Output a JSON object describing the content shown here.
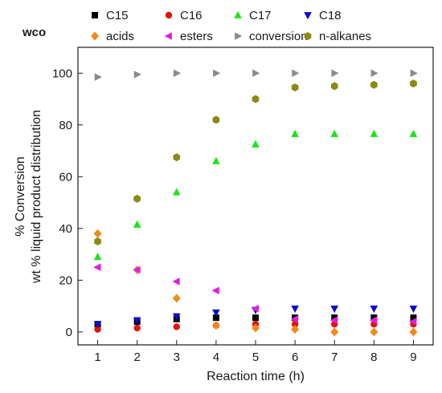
{
  "panel_label": "wco",
  "chart_data": {
    "type": "scatter",
    "xlabel": "Reaction time (h)",
    "ylabel_line1": "% Conversion",
    "ylabel_line2": "wt % liquid product distribution",
    "xlim": [
      0.5,
      9.5
    ],
    "ylim": [
      -5,
      110
    ],
    "x_ticks": [
      1,
      2,
      3,
      4,
      5,
      6,
      7,
      8,
      9
    ],
    "y_ticks": [
      0,
      20,
      40,
      60,
      80,
      100
    ],
    "grid": false,
    "legend_position": "top",
    "x": [
      1,
      2,
      3,
      4,
      5,
      6,
      7,
      8,
      9
    ],
    "series": [
      {
        "name": "C15",
        "marker": "square",
        "color": "#000000",
        "values": [
          3,
          4,
          5,
          5.5,
          5.5,
          5.5,
          5.5,
          5.5,
          5.5
        ]
      },
      {
        "name": "C16",
        "marker": "circle",
        "color": "#e3120b",
        "values": [
          1,
          1.5,
          2,
          2.5,
          3,
          3,
          3,
          3,
          3
        ]
      },
      {
        "name": "C17",
        "marker": "triangle-up",
        "color": "#19e619",
        "values": [
          29,
          41.5,
          54,
          66,
          72.5,
          76.5,
          76.5,
          76.5,
          76.5
        ]
      },
      {
        "name": "C18",
        "marker": "triangle-down",
        "color": "#0a0ad1",
        "values": [
          3,
          4.5,
          6,
          7.5,
          8.5,
          9,
          9,
          9,
          9
        ]
      },
      {
        "name": "acids",
        "marker": "diamond",
        "color": "#f28a1a",
        "values": [
          38,
          24,
          13,
          2.5,
          1.5,
          1,
          0,
          0,
          0
        ]
      },
      {
        "name": "esters",
        "marker": "triangle-left",
        "color": "#e619e6",
        "values": [
          25,
          24,
          19.5,
          16,
          9,
          5,
          4.5,
          4.5,
          4
        ]
      },
      {
        "name": "conversion",
        "marker": "triangle-right",
        "color": "#8c8c8c",
        "values": [
          98.5,
          99.5,
          100,
          100,
          100,
          100,
          100,
          100,
          100
        ]
      },
      {
        "name": "n-alkanes",
        "marker": "hexagon",
        "color": "#8a8a14",
        "values": [
          35,
          51.5,
          67.5,
          82,
          90,
          94.5,
          95,
          95.5,
          96
        ]
      }
    ]
  }
}
